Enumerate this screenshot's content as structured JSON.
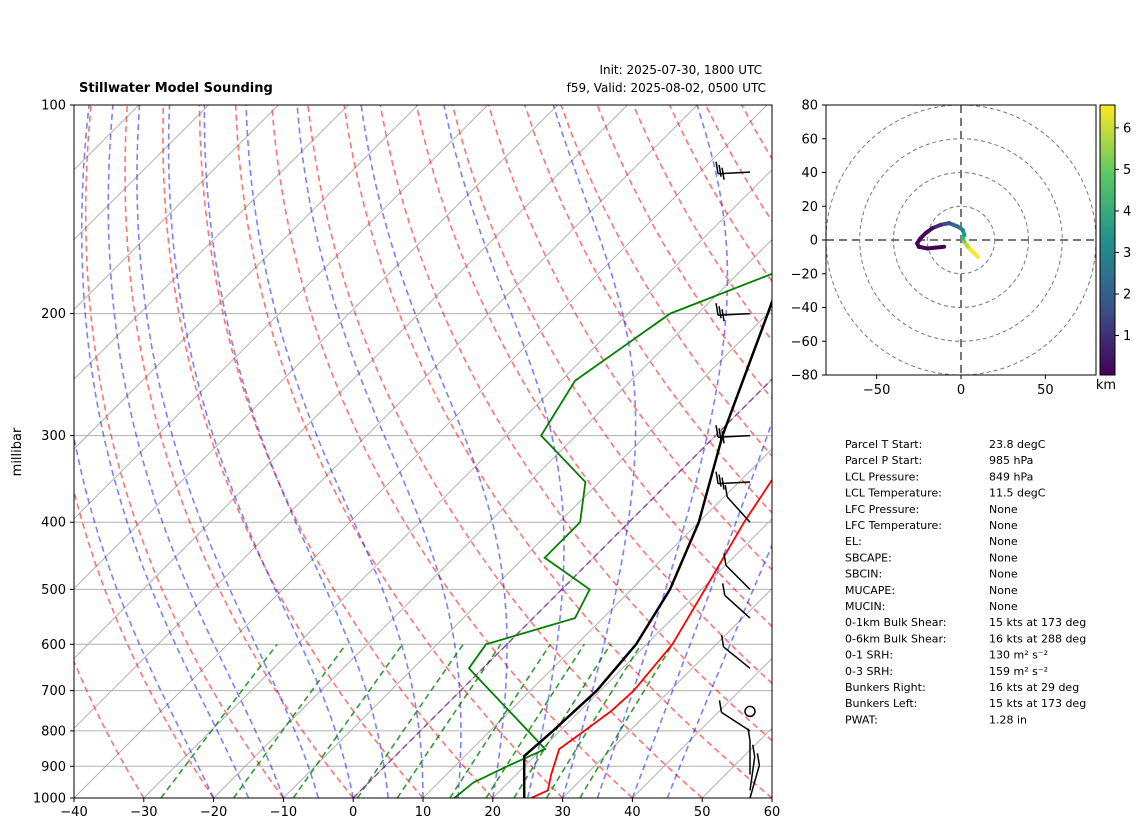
{
  "header": {
    "title": "Stillwater Model Sounding",
    "init": "Init: 2025-07-30, 1800 UTC",
    "valid": "f59, Valid: 2025-08-02, 0500 UTC"
  },
  "colors": {
    "temperature": "#ff0000",
    "dewpoint": "#008000",
    "parcel": "#000000",
    "dry_adiabat": "#ff0000",
    "moist_adiabat": "#0000ff",
    "mixing_ratio": "#008000",
    "zero_isotherm": "#800080",
    "grid": "#b0b0b0"
  },
  "chart_data": [
    {
      "type": "line",
      "name": "skew-t",
      "xlabel": "",
      "ylabel": "millibar",
      "xlim": [
        -40,
        60
      ],
      "ylim": [
        1000,
        100
      ],
      "x_ticks": [
        "−40",
        "−30",
        "−20",
        "−10",
        "0",
        "10",
        "20",
        "30",
        "40",
        "50",
        "60"
      ],
      "y_ticks": [
        100,
        200,
        300,
        400,
        500,
        600,
        700,
        800,
        900,
        1000
      ],
      "series": [
        {
          "name": "Temperature",
          "color": "#ff0000",
          "points": [
            [
              25.5,
              1000
            ],
            [
              26.8,
              975
            ],
            [
              25,
              925
            ],
            [
              22.5,
              850
            ],
            [
              23.5,
              800
            ],
            [
              24.5,
              750
            ],
            [
              24.8,
              700
            ],
            [
              23.7,
              600
            ],
            [
              20.5,
              500
            ],
            [
              16.5,
              400
            ],
            [
              12.3,
              300
            ],
            [
              7.3,
              200
            ],
            [
              8.2,
              160
            ],
            [
              12.5,
              115
            ],
            [
              15,
              100
            ]
          ]
        },
        {
          "name": "Dewpoint",
          "color": "#008000",
          "points": [
            [
              14.5,
              1000
            ],
            [
              15,
              950
            ],
            [
              17.5,
              900
            ],
            [
              20.5,
              850
            ],
            [
              10,
              750
            ],
            [
              -2,
              650
            ],
            [
              -3,
              600
            ],
            [
              6,
              550
            ],
            [
              4,
              500
            ],
            [
              -7,
              450
            ],
            [
              -7,
              400
            ],
            [
              -12,
              350
            ],
            [
              -25,
              300
            ],
            [
              -28,
              250
            ],
            [
              -24,
              200
            ],
            [
              -15,
              175
            ],
            [
              -12,
              150
            ],
            [
              -11,
              125
            ],
            [
              -13.5,
              105
            ],
            [
              -11,
              100
            ]
          ]
        },
        {
          "name": "Parcel",
          "color": "#000000",
          "points": [
            [
              24.5,
              1000
            ],
            [
              18.5,
              870
            ],
            [
              19,
              800
            ],
            [
              19.5,
              700
            ],
            [
              18.5,
              600
            ],
            [
              15.5,
              500
            ],
            [
              10,
              400
            ],
            [
              1,
              300
            ],
            [
              -10,
              200
            ],
            [
              -18,
              150
            ],
            [
              -22,
              120
            ],
            [
              -22.5,
              110
            ],
            [
              -21.5,
              100
            ]
          ]
        }
      ]
    },
    {
      "type": "line",
      "name": "hodograph",
      "xlim": [
        -80,
        80
      ],
      "ylim": [
        -80,
        80
      ],
      "x_ticks": [
        "−50",
        "0",
        "50"
      ],
      "y_ticks": [
        "80",
        "60",
        "40",
        "20",
        "0",
        "−20",
        "−40",
        "−60",
        "−80"
      ],
      "colorbar_label": "km",
      "colorbar_ticks": [
        "6",
        "5",
        "4",
        "3",
        "2",
        "1"
      ],
      "points": [
        [
          10,
          -10
        ],
        [
          4,
          -4
        ],
        [
          2,
          -1
        ],
        [
          1,
          1
        ],
        [
          2,
          3
        ],
        [
          1,
          6
        ],
        [
          -2,
          8
        ],
        [
          -7,
          10
        ],
        [
          -12,
          9
        ],
        [
          -17,
          7
        ],
        [
          -21,
          4
        ],
        [
          -24,
          1
        ],
        [
          -26,
          -2
        ],
        [
          -25,
          -4
        ],
        [
          -20,
          -5
        ],
        [
          -15,
          -4.5
        ],
        [
          -10,
          -4
        ]
      ]
    }
  ],
  "wind_barbs_levels": [
    125,
    200,
    300,
    350,
    400,
    500,
    550,
    650,
    750,
    800,
    925,
    975,
    1000
  ],
  "params": [
    {
      "label": "Parcel T Start:",
      "value": "23.8 degC"
    },
    {
      "label": "Parcel P Start:",
      "value": "985 hPa"
    },
    {
      "label": "LCL Pressure:",
      "value": "849 hPa"
    },
    {
      "label": "LCL Temperature:",
      "value": "11.5 degC"
    },
    {
      "label": "LFC Pressure:",
      "value": "None"
    },
    {
      "label": "LFC Temperature:",
      "value": "None"
    },
    {
      "label": "EL:",
      "value": "None"
    },
    {
      "label": "SBCAPE:",
      "value": "None"
    },
    {
      "label": "SBCIN:",
      "value": "None"
    },
    {
      "label": "MUCAPE:",
      "value": "None"
    },
    {
      "label": "MUCIN:",
      "value": "None"
    },
    {
      "label": "0-1km Bulk Shear:",
      "value": "15 kts at 173 deg"
    },
    {
      "label": "0-6km Bulk Shear:",
      "value": "16 kts at 288 deg"
    },
    {
      "label": "0-1 SRH:",
      "value": "130 m² s⁻²"
    },
    {
      "label": "0-3 SRH:",
      "value": "159 m² s⁻²"
    },
    {
      "label": "Bunkers Right:",
      "value": "16 kts at 29 deg"
    },
    {
      "label": "Bunkers Left:",
      "value": "15 kts at 173 deg"
    },
    {
      "label": "PWAT:",
      "value": "1.28 in"
    }
  ]
}
